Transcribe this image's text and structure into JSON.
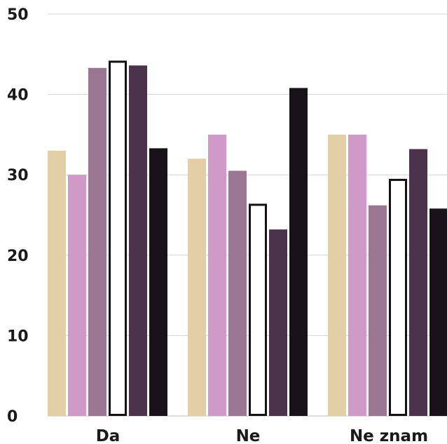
{
  "chart_data": {
    "type": "bar",
    "title": "",
    "xlabel": "",
    "ylabel": "",
    "categories": [
      "Da",
      "Ne",
      "Ne znam"
    ],
    "ylim": [
      0,
      50
    ],
    "yticks": [
      "0",
      "10",
      "20",
      "30",
      "40",
      "50"
    ],
    "grid": true,
    "legend": "none",
    "series": [
      {
        "values": [
          33,
          32,
          35
        ],
        "color": "#e2cfa6",
        "stroke": "none"
      },
      {
        "values": [
          30,
          35,
          35
        ],
        "color": "#cf9ac8",
        "stroke": "none"
      },
      {
        "values": [
          43.3,
          30.5,
          26.2
        ],
        "color": "#9a7693",
        "stroke": "none"
      },
      {
        "values": [
          44.2,
          26.4,
          29.5
        ],
        "color": "#ffffff",
        "stroke": "#141014"
      },
      {
        "values": [
          43.6,
          23.2,
          33.2
        ],
        "color": "#4a324b",
        "stroke": "none"
      },
      {
        "values": [
          33.3,
          40.8,
          25.8
        ],
        "color": "#181318",
        "stroke": "none"
      }
    ]
  }
}
